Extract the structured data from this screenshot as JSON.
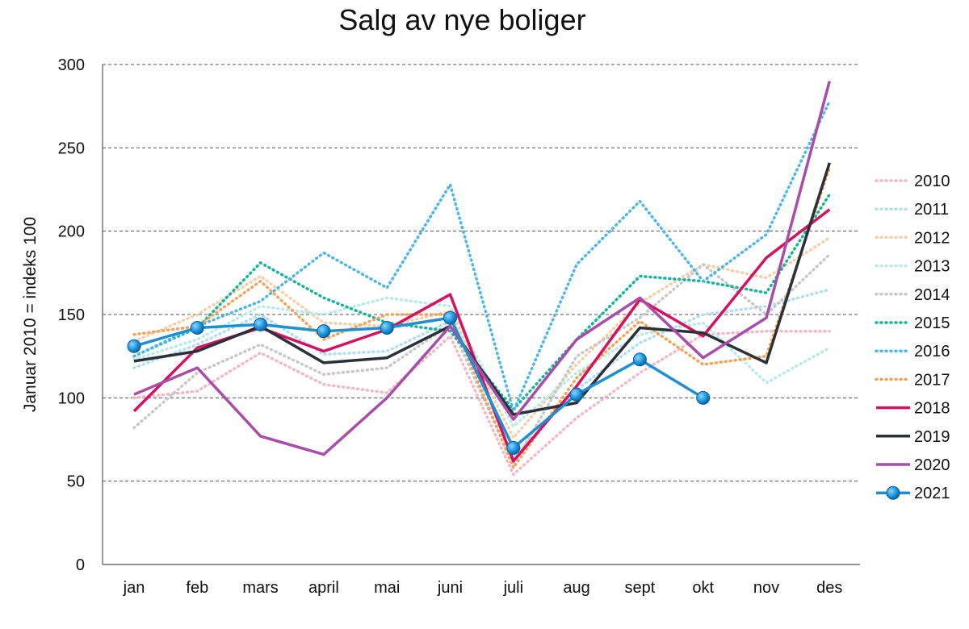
{
  "chart_data": {
    "type": "line",
    "title": "Salg av nye boliger",
    "xlabel": "",
    "ylabel": "Januar 2010 = indeks 100",
    "ylim": [
      0,
      300
    ],
    "yticks": [
      0,
      50,
      100,
      150,
      200,
      250,
      300
    ],
    "grid": "horizontal dashed",
    "legend_position": "right",
    "categories": [
      "jan",
      "feb",
      "mars",
      "april",
      "mai",
      "juni",
      "juli",
      "aug",
      "sept",
      "okt",
      "nov",
      "des"
    ],
    "series": [
      {
        "name": "2010",
        "style": "dotted",
        "color": "#f4b7c6",
        "values": [
          100,
          104,
          127,
          108,
          103,
          137,
          54,
          88,
          115,
          138,
          140,
          140
        ]
      },
      {
        "name": "2011",
        "style": "dotted",
        "color": "#aee0f2",
        "values": [
          118,
          132,
          150,
          126,
          128,
          146,
          64,
          105,
          133,
          150,
          155,
          165
        ]
      },
      {
        "name": "2012",
        "style": "dotted",
        "color": "#f9cfa7",
        "values": [
          134,
          150,
          173,
          145,
          143,
          152,
          76,
          120,
          157,
          180,
          172,
          196
        ]
      },
      {
        "name": "2013",
        "style": "dotted",
        "color": "#b8ece8",
        "values": [
          123,
          135,
          155,
          150,
          160,
          155,
          83,
          115,
          138,
          145,
          109,
          130
        ]
      },
      {
        "name": "2014",
        "style": "dotted",
        "color": "#c8c8c8",
        "values": [
          82,
          115,
          132,
          114,
          118,
          144,
          60,
          125,
          148,
          180,
          150,
          186
        ]
      },
      {
        "name": "2015",
        "style": "dotted",
        "color": "#14b59a",
        "values": [
          125,
          142,
          181,
          160,
          145,
          140,
          93,
          135,
          173,
          170,
          163,
          222
        ]
      },
      {
        "name": "2016",
        "style": "dotted",
        "color": "#4fb6ea",
        "values": [
          125,
          143,
          158,
          187,
          166,
          228,
          92,
          180,
          218,
          170,
          198,
          278
        ]
      },
      {
        "name": "2017",
        "style": "dotted",
        "color": "#f4a45a",
        "values": [
          138,
          143,
          170,
          135,
          150,
          150,
          58,
          112,
          146,
          120,
          125,
          238
        ]
      },
      {
        "name": "2018",
        "style": "solid",
        "color": "#d4125f",
        "values": [
          92,
          130,
          142,
          128,
          141,
          162,
          62,
          107,
          159,
          137,
          184,
          213
        ]
      },
      {
        "name": "2019",
        "style": "solid",
        "color": "#2b3138",
        "values": [
          122,
          128,
          143,
          121,
          124,
          143,
          90,
          97,
          142,
          139,
          121,
          241
        ]
      },
      {
        "name": "2020",
        "style": "solid",
        "color": "#a84ea8",
        "values": [
          102,
          118,
          77,
          66,
          100,
          143,
          87,
          135,
          160,
          124,
          148,
          290
        ]
      },
      {
        "name": "2021",
        "style": "markers",
        "color": "#1f8fd1",
        "values": [
          131,
          142,
          144,
          140,
          142,
          148,
          70,
          102,
          123,
          100,
          null,
          null
        ]
      }
    ]
  }
}
